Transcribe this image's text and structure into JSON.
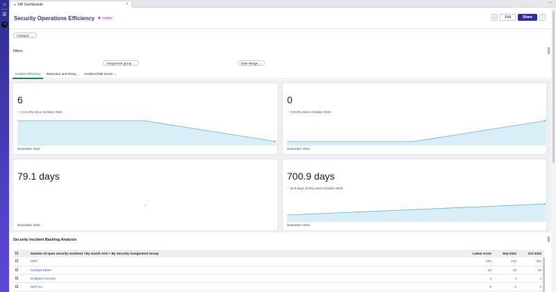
{
  "browser": {
    "tab_title": "SIR Dashboards",
    "tab_icon": "dashboard-icon"
  },
  "header": {
    "title": "Security Operations Efficiency",
    "badge": "Certified",
    "edit_label": "Edit",
    "share_label": "Share",
    "more_label": "⋮"
  },
  "filters": {
    "category_label": "Category",
    "label": "Filters",
    "assignment_group_label": "Assignment group",
    "date_range_label": "Date Range"
  },
  "tabs": [
    {
      "label": "Analyst Efficiency",
      "active": true
    },
    {
      "label": "Detection and Resp..."
    },
    {
      "label": "Incident Risk Score ..."
    }
  ],
  "widgets": [
    {
      "value": "6",
      "delta_text": "0 (-6.4%) since October 2022",
      "direction": "down",
      "period": "November 2022",
      "trend": [
        1,
        1,
        1,
        0
      ]
    },
    {
      "value": "0",
      "delta_text": "0 (0.0%) since October 2022",
      "direction": "up",
      "period": "November 2022",
      "trend": [
        0,
        0,
        0,
        1
      ]
    },
    {
      "value": "79.1 days",
      "delta_text": "",
      "direction": "none",
      "period": "November 2022",
      "trend": []
    },
    {
      "value": "700.9 days",
      "delta_text": "22.5 days (3.3%) since October 2022",
      "direction": "up-red",
      "period": "November 2022",
      "trend": [
        0.2,
        0.4,
        0.6,
        0.8,
        1
      ]
    }
  ],
  "backlog": {
    "title": "Security Incident Backlog Analysis",
    "columns": [
      "Number of open security incidents / By month AVG + By Security Assignment Group",
      "Latest score",
      "Sep 2022",
      "Oct 2022"
    ],
    "rows": [
      {
        "name": "SIRT",
        "latest": "103",
        "sep": "102",
        "oct": "102"
      },
      {
        "name": "SecOps EMEA",
        "latest": "10",
        "sep": "10",
        "oct": "10"
      },
      {
        "name": "Endpoint Security",
        "latest": "4",
        "sep": "4",
        "oct": "4"
      },
      {
        "name": "SIRT L2",
        "latest": "2",
        "sep": "2",
        "oct": "2"
      }
    ]
  },
  "colors": {
    "accent": "#2a2f9a",
    "trend_line": "#4fb3d0",
    "positive_green": "#15803d",
    "negative_red": "#dc2626"
  }
}
